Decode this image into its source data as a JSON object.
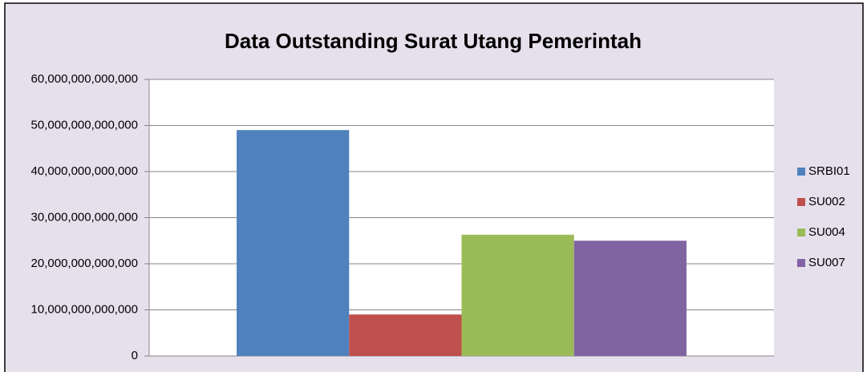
{
  "chart_data": {
    "type": "bar",
    "title": "Data Outstanding Surat Utang Pemerintah",
    "categories": [
      null
    ],
    "series": [
      {
        "name": "SRBI01",
        "color": "#4f81bd",
        "values": [
          49000000000000
        ]
      },
      {
        "name": "SU002",
        "color": "#c0504d",
        "values": [
          9000000000000
        ]
      },
      {
        "name": "SU004",
        "color": "#9bbb59",
        "values": [
          26300000000000
        ]
      },
      {
        "name": "SU007",
        "color": "#8064a2",
        "values": [
          25000000000000
        ]
      }
    ],
    "ylim": [
      0,
      60000000000000
    ],
    "yticks": [
      0,
      {
        "value": 10000000000000,
        "label": "10,000,000,000,000"
      },
      {
        "value": 20000000000000,
        "label": "20,000,000,000,000"
      },
      {
        "value": 30000000000000,
        "label": "30,000,000,000,000"
      },
      {
        "value": 40000000000000,
        "label": "40,000,000,000,000"
      },
      {
        "value": 50000000000000,
        "label": "50,000,000,000,000"
      },
      {
        "value": 60000000000000,
        "label": "60,000,000,000,000"
      }
    ],
    "grid": true,
    "legend": "right"
  }
}
